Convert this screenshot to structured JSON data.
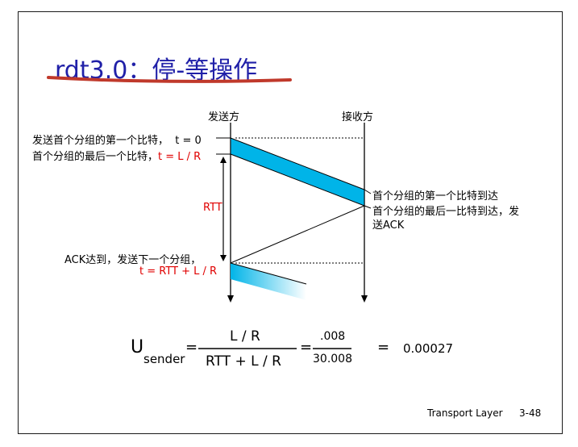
{
  "title": "rdt3.0：停-等操作",
  "diagram": {
    "sender_label": "发送方",
    "receiver_label": "接收方",
    "first_bit_tx_text": "发送首个分组的第一个比特，",
    "first_bit_tx_time": "t = 0",
    "last_bit_tx_text": "首个分组的最后一个比特，",
    "last_bit_tx_time": "t = L / R",
    "rtt_label": "RTT",
    "first_bit_rx": "首个分组的第一个比特到达",
    "last_bit_rx_line1": "首个分组的最后一比特到达，发",
    "last_bit_rx_line2": "送ACK",
    "ack_arrive": "ACK达到，发送下一个分组，",
    "ack_time": "t = RTT + L / R"
  },
  "equation": {
    "u": "U",
    "sub": "sender",
    "eq1": "=",
    "num1": "L / R",
    "den1": "RTT + L / R",
    "eq2": "=",
    "num2": ".008",
    "den2": "30.008",
    "eq3": "=",
    "result": "0.00027"
  },
  "footer": {
    "label": "Transport Layer",
    "page": "3-48"
  },
  "colors": {
    "title": "#2020a8",
    "packet_fill": "#00b4e8",
    "accent_red": "#e00000",
    "underline": "#c0392b"
  }
}
